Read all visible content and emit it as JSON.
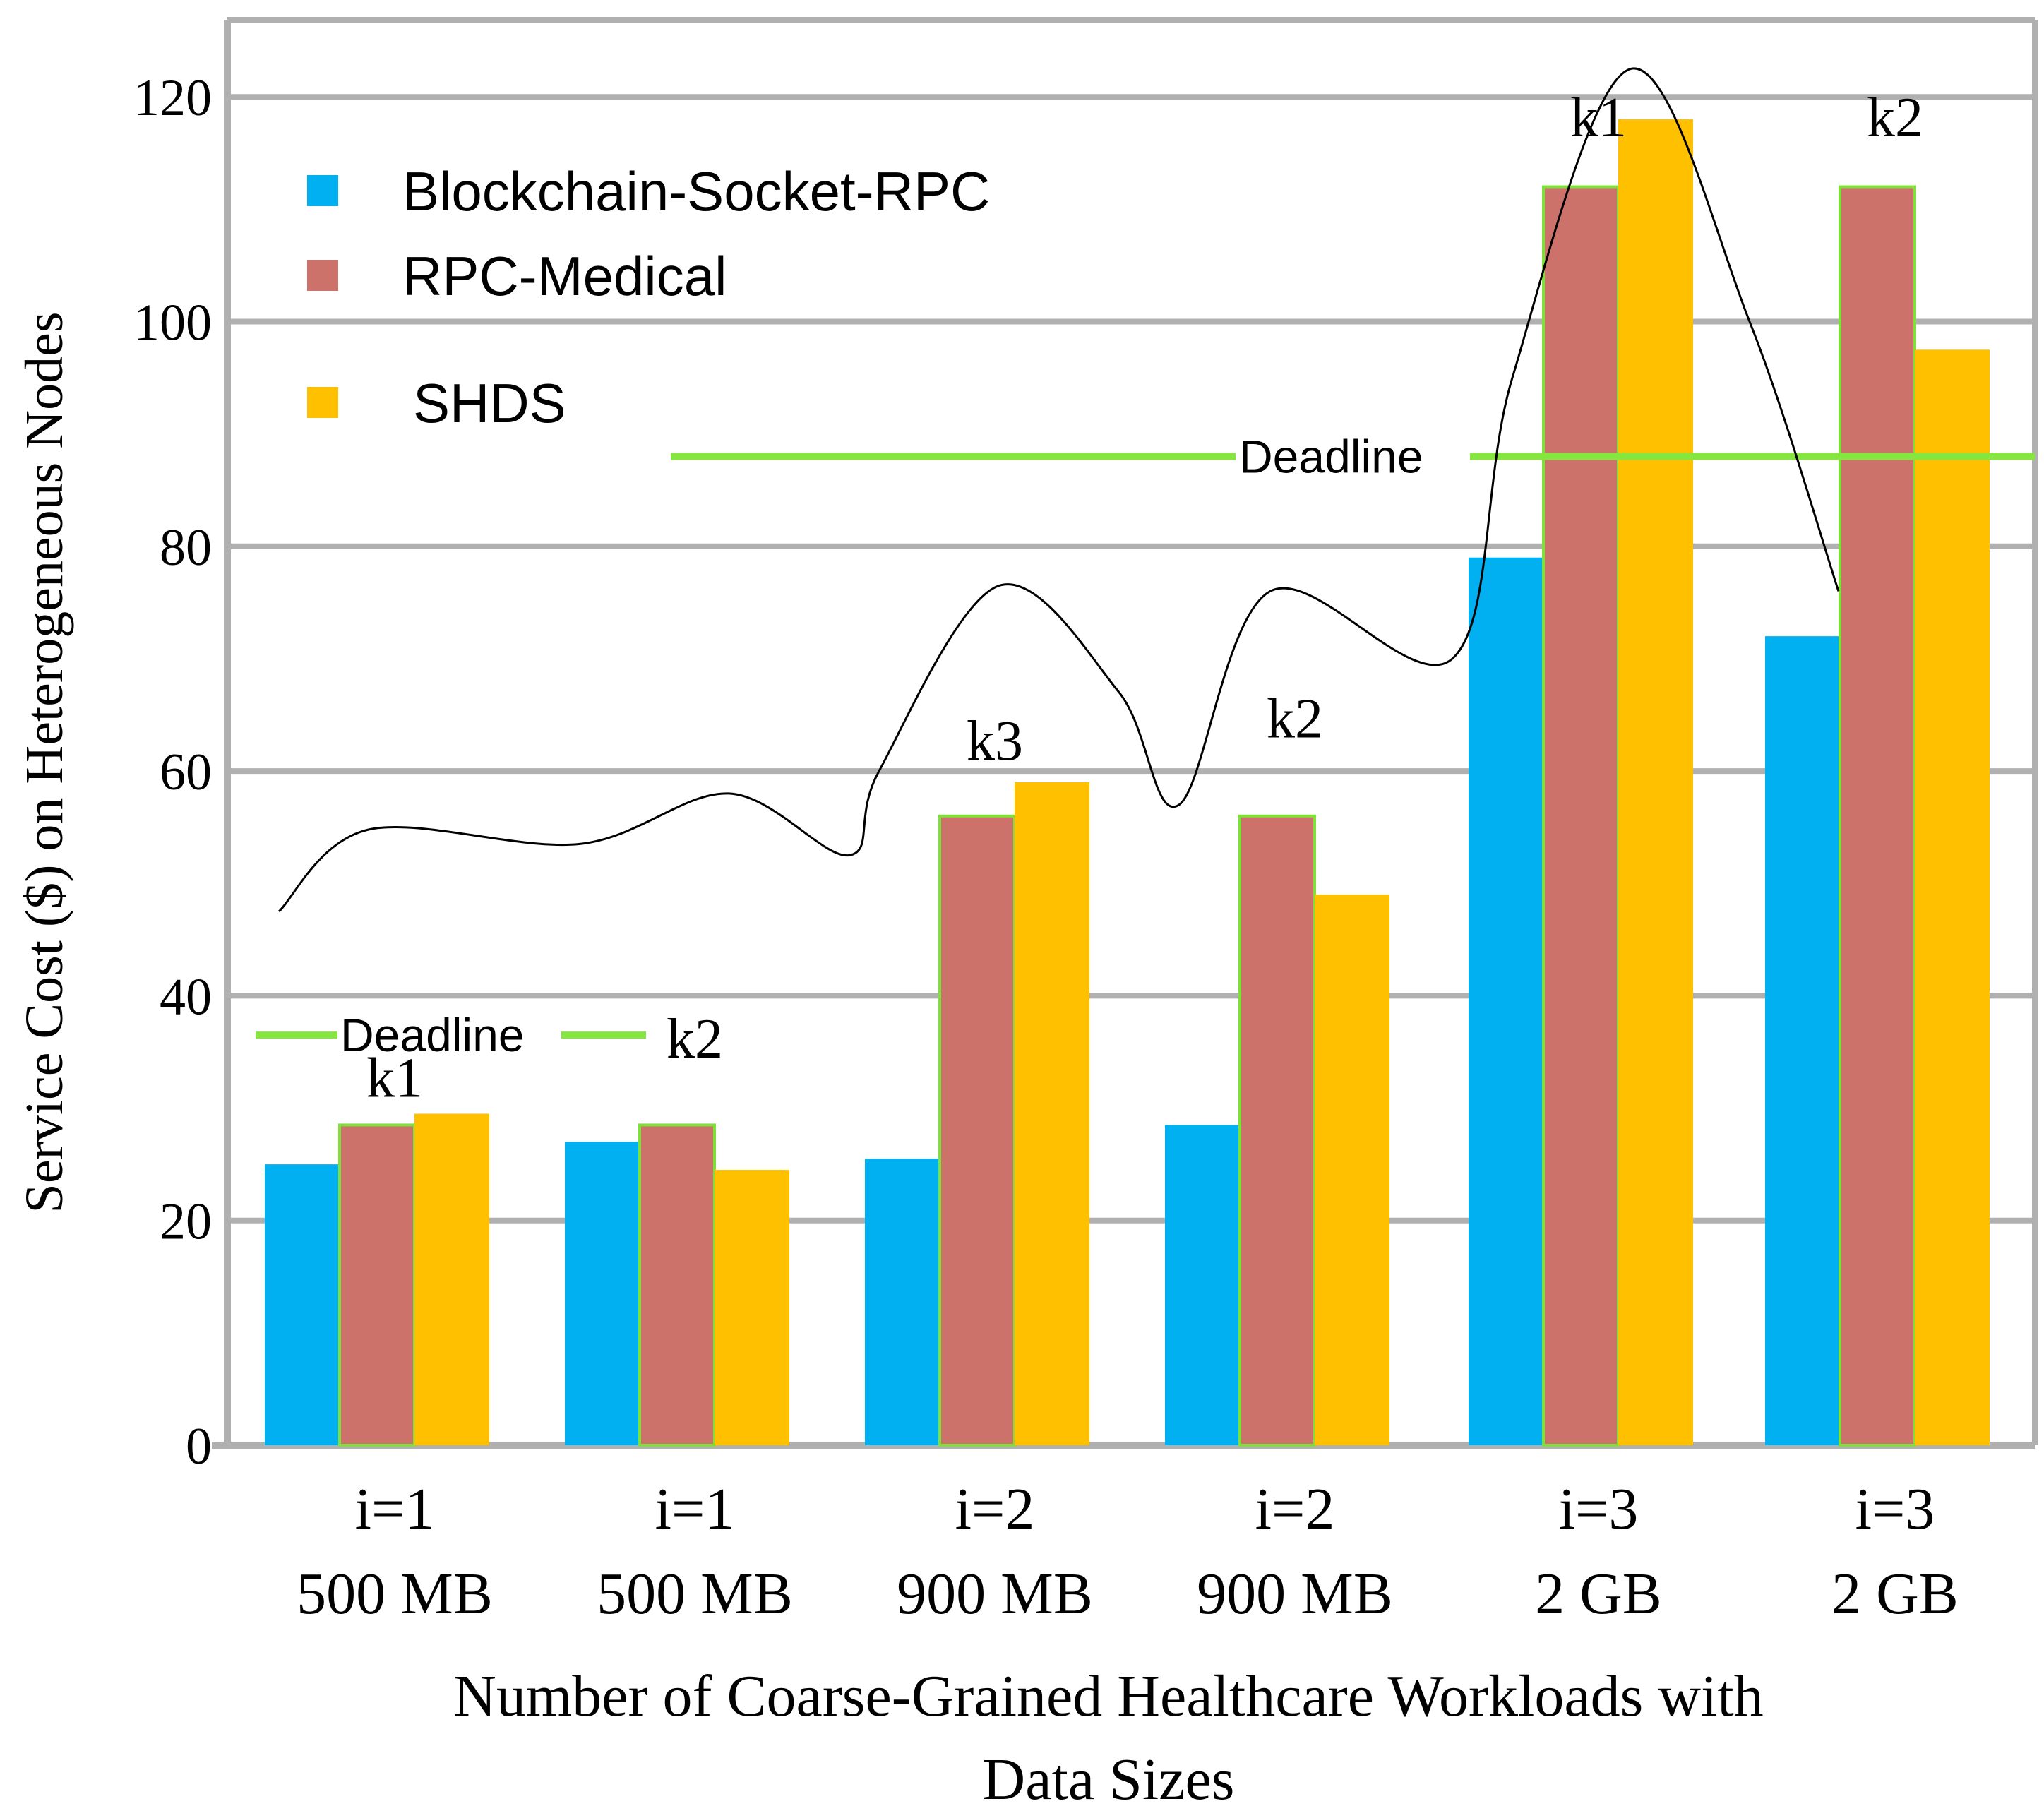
{
  "chart_data": {
    "type": "bar",
    "title": "",
    "ylabel": "Service Cost ($) on Heterogeneous Nodes",
    "xlabel_lines": [
      "Number of Coarse-Grained Healthcare Workloads with",
      "Data Sizes"
    ],
    "ylim": [
      0,
      125
    ],
    "yticks": [
      0,
      20,
      40,
      60,
      80,
      100,
      120
    ],
    "grid": true,
    "legend_position": "top-left",
    "categories": [
      {
        "line1": "i=1",
        "line2": "500 MB"
      },
      {
        "line1": "i=1",
        "line2": "500 MB"
      },
      {
        "line1": "i=2",
        "line2": "900 MB"
      },
      {
        "line1": "i=2",
        "line2": "900 MB"
      },
      {
        "line1": "i=3",
        "line2": "2 GB"
      },
      {
        "line1": "i=3",
        "line2": "2 GB"
      }
    ],
    "series": [
      {
        "name": "Blockchain-Socket-RPC",
        "color": "#00b0f0",
        "values": [
          25,
          27,
          25.5,
          28.5,
          79,
          72
        ]
      },
      {
        "name": "RPC-Medical",
        "color": "#cd716b",
        "values": [
          28.5,
          28.5,
          56,
          56,
          112,
          112
        ]
      },
      {
        "name": "SHDS",
        "color": "#ffc000",
        "values": [
          29.5,
          24.5,
          59,
          49,
          118,
          97.5
        ]
      }
    ],
    "k_annotations": [
      {
        "label": "k1",
        "category_index": 0,
        "y": 31
      },
      {
        "label": "k2",
        "category_index": 1,
        "y": 34.5
      },
      {
        "label": "k3",
        "category_index": 2,
        "y": 61
      },
      {
        "label": "k2",
        "category_index": 3,
        "y": 63
      },
      {
        "label": "k1",
        "category_index": 4,
        "y": 116.5
      },
      {
        "label": "k2",
        "category_index": 5,
        "y": 116.5
      }
    ],
    "deadlines": [
      {
        "label": "Deadline",
        "y": 36.5,
        "from_category": 0,
        "to_category": 1
      },
      {
        "label": "Deadline",
        "y": 88,
        "from_category": 1.5,
        "to_category": 5.5
      }
    ],
    "curve": {
      "description_points": [
        [
          0,
          47.5
        ],
        [
          0.3,
          54.8
        ],
        [
          1.0,
          53.5
        ],
        [
          1.5,
          58
        ],
        [
          1.9,
          52.5
        ],
        [
          2.0,
          60
        ],
        [
          2.4,
          76.5
        ],
        [
          2.8,
          67
        ],
        [
          3.0,
          57
        ],
        [
          3.3,
          76
        ],
        [
          3.9,
          70
        ],
        [
          4.1,
          95
        ],
        [
          4.5,
          122.5
        ],
        [
          4.9,
          100
        ],
        [
          5.2,
          76
        ]
      ],
      "color": "#000000"
    },
    "bar_outline_color": "#7fe03a",
    "deadline_color": "#86e640",
    "grid_color": "#b0b0b0"
  }
}
